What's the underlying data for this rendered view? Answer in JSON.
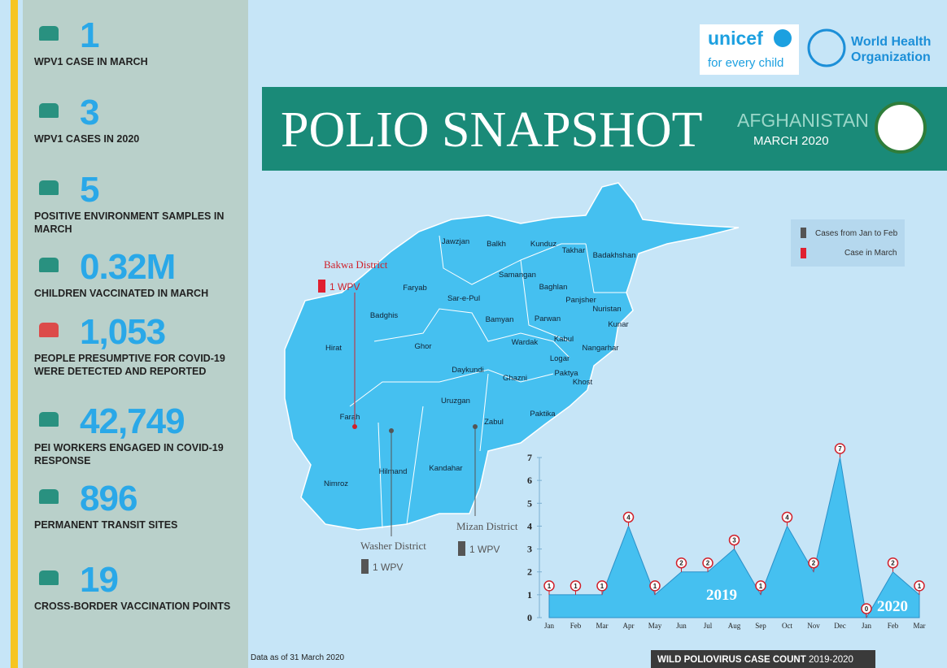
{
  "sidebar": {
    "stats": [
      {
        "value": "1",
        "label": "WPV1 CASE IN MARCH"
      },
      {
        "value": "3",
        "label": "WPV1 CASES IN 2020"
      },
      {
        "value": "5",
        "label": "POSITIVE ENVIRONMENT SAMPLES IN MARCH"
      },
      {
        "value": "0.32M",
        "label": "CHILDREN VACCINATED IN MARCH"
      },
      {
        "value": "1,053",
        "label": "PEOPLE PRESUMPTIVE FOR COVID-19 WERE DETECTED AND REPORTED"
      },
      {
        "value": "42,749",
        "label": "PEI WORKERS ENGAGED IN COVID-19 RESPONSE"
      },
      {
        "value": "896",
        "label": "PERMANENT TRANSIT SITES"
      },
      {
        "value": "19",
        "label": "CROSS-BORDER VACCINATION POINTS"
      }
    ]
  },
  "logos": {
    "unicef": "unicef",
    "unicef_tagline": "for every child",
    "who": [
      "World Health",
      "Organization"
    ]
  },
  "header": {
    "title": "POLIO SNAPSHOT",
    "country": "AFGHANISTAN",
    "date": "MARCH 2020"
  },
  "map": {
    "provinces": [
      "Jawzjan",
      "Balkh",
      "Kunduz",
      "Takhar",
      "Badakhshan",
      "Samangan",
      "Faryab",
      "Sar-e-Pul",
      "Baghlan",
      "Panjsher",
      "Nuristan",
      "Badghis",
      "Bamyan",
      "Parwan",
      "Kunar",
      "Hirat",
      "Ghor",
      "Wardak",
      "Kabul",
      "Nangarhar",
      "Logar",
      "Daykundi",
      "Paktya",
      "Ghazni",
      "Khost",
      "Uruzgan",
      "Paktika",
      "Farah",
      "Zabul",
      "Hilmand",
      "Kandahar",
      "Nimroz"
    ],
    "legend": [
      "Cases from Jan to Feb",
      "Case in March"
    ],
    "districts": [
      {
        "name": "Bakwa District",
        "cases": "1 WPV"
      },
      {
        "name": "Washer District",
        "cases": "1 WPV"
      },
      {
        "name": "Mizan District",
        "cases": "1 WPV"
      }
    ]
  },
  "chart_data": {
    "type": "area",
    "title": "WILD POLIOVIRUS CASE COUNT",
    "subtitle": "2019-2020",
    "categories": [
      "Jan",
      "Feb",
      "Mar",
      "Apr",
      "May",
      "Jun",
      "Jul",
      "Aug",
      "Sep",
      "Oct",
      "Nov",
      "Dec",
      "Jan",
      "Feb",
      "Mar"
    ],
    "values": [
      1,
      1,
      1,
      4,
      1,
      2,
      2,
      3,
      1,
      4,
      2,
      7,
      0,
      2,
      1
    ],
    "color": "#45c0f0",
    "ylim": [
      0,
      7
    ],
    "yticks": [
      0,
      1,
      2,
      3,
      4,
      5,
      6,
      7
    ],
    "annotations": [
      "2019",
      "2020"
    ]
  },
  "footer": {
    "note": "Data as of 31 March 2020"
  }
}
